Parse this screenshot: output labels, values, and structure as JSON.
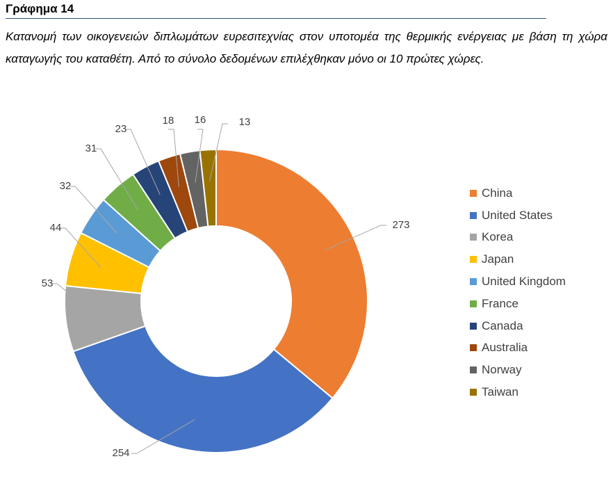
{
  "figure": {
    "heading": "Γράφημα 14",
    "caption": "Κατανομή των οικογενειών διπλωμάτων ευρεσιτεχνίας στον υποτομέα της θερμικής ενέργειας με βάση τη χώρα καταγωγής του καταθέτη. Από το σύνολο δεδομένων επιλέχθηκαν μόνο οι 10 πρώτες χώρες."
  },
  "chart_data": {
    "type": "pie",
    "subtype": "doughnut",
    "categories": [
      "China",
      "United States",
      "Korea",
      "Japan",
      "United Kingdom",
      "France",
      "Canada",
      "Australia",
      "Norway",
      "Taiwan"
    ],
    "values": [
      273,
      254,
      53,
      44,
      32,
      31,
      23,
      18,
      16,
      13
    ],
    "colors": [
      "#ED7D31",
      "#4472C4",
      "#A5A5A5",
      "#FFC000",
      "#5B9BD5",
      "#70AD47",
      "#264478",
      "#9E480E",
      "#636363",
      "#997300"
    ],
    "legend_position": "right",
    "data_labels": "outside with leader lines"
  }
}
